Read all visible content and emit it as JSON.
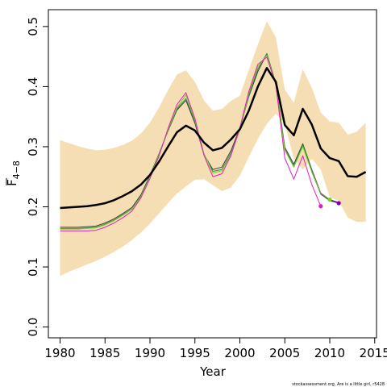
{
  "chart_data": {
    "type": "line",
    "xlabel": "Year",
    "ylabel": "F",
    "ylabel_sub": "4−8",
    "xlim": [
      1978.7,
      2015.2
    ],
    "ylim": [
      -0.018,
      0.528
    ],
    "xticks": [
      "1980",
      "1985",
      "1990",
      "1995",
      "2000",
      "2005",
      "2010",
      "2015"
    ],
    "yticks": [
      "0.0",
      "0.1",
      "0.2",
      "0.3",
      "0.4",
      "0.5"
    ],
    "band_color": "#F5DEB3",
    "band": {
      "x": [
        1980,
        1981,
        1982,
        1983,
        1984,
        1985,
        1986,
        1987,
        1988,
        1989,
        1990,
        1991,
        1992,
        1993,
        1994,
        1995,
        1996,
        1997,
        1998,
        1999,
        2000,
        2001,
        2002,
        2003,
        2004,
        2005,
        2006,
        2007,
        2008,
        2009,
        2010,
        2011,
        2012,
        2013,
        2014
      ],
      "lower": [
        0.085,
        0.092,
        0.098,
        0.104,
        0.11,
        0.117,
        0.125,
        0.134,
        0.145,
        0.157,
        0.172,
        0.189,
        0.206,
        0.222,
        0.234,
        0.245,
        0.246,
        0.236,
        0.226,
        0.232,
        0.252,
        0.283,
        0.313,
        0.338,
        0.355,
        0.338,
        0.28,
        0.262,
        0.28,
        0.262,
        0.216,
        0.21,
        0.182,
        0.175,
        0.175
      ],
      "upper": [
        0.311,
        0.306,
        0.301,
        0.297,
        0.294,
        0.295,
        0.298,
        0.303,
        0.31,
        0.322,
        0.34,
        0.365,
        0.394,
        0.42,
        0.427,
        0.408,
        0.377,
        0.36,
        0.363,
        0.376,
        0.385,
        0.428,
        0.47,
        0.509,
        0.482,
        0.395,
        0.373,
        0.429,
        0.398,
        0.357,
        0.342,
        0.34,
        0.32,
        0.325,
        0.34
      ]
    },
    "series": [
      {
        "color": "#000000",
        "width": 2.5,
        "x": [
          1980,
          1981,
          1982,
          1983,
          1984,
          1985,
          1986,
          1987,
          1988,
          1989,
          1990,
          1991,
          1992,
          1993,
          1994,
          1995,
          1996,
          1997,
          1998,
          1999,
          2000,
          2001,
          2002,
          2003,
          2004,
          2005,
          2006,
          2007,
          2008,
          2009,
          2010,
          2011,
          2012,
          2013,
          2014
        ],
        "y": [
          0.198,
          0.199,
          0.2,
          0.201,
          0.203,
          0.206,
          0.211,
          0.218,
          0.226,
          0.237,
          0.253,
          0.275,
          0.3,
          0.324,
          0.335,
          0.327,
          0.307,
          0.294,
          0.298,
          0.312,
          0.329,
          0.36,
          0.4,
          0.431,
          0.408,
          0.336,
          0.319,
          0.363,
          0.337,
          0.297,
          0.281,
          0.276,
          0.251,
          0.25,
          0.258
        ]
      },
      {
        "color": "#3D3D3D",
        "width": 1,
        "x": [
          1980,
          1981,
          1982,
          1983,
          1984,
          1985,
          1986,
          1987,
          1988,
          1989,
          1990,
          1991,
          1992,
          1993,
          1994,
          1995,
          1996,
          1997,
          1998,
          1999,
          2000,
          2001,
          2002,
          2003,
          2004,
          2005,
          2006,
          2007,
          2008,
          2009,
          2010,
          2011
        ],
        "y": [
          0.166,
          0.166,
          0.166,
          0.167,
          0.168,
          0.173,
          0.18,
          0.189,
          0.199,
          0.22,
          0.252,
          0.288,
          0.326,
          0.361,
          0.377,
          0.339,
          0.287,
          0.262,
          0.266,
          0.293,
          0.331,
          0.384,
          0.425,
          0.455,
          0.405,
          0.299,
          0.271,
          0.305,
          0.262,
          0.223,
          0.212,
          0.207
        ],
        "end_dot": false
      },
      {
        "color": "#2E8B57",
        "width": 1,
        "x": [
          1980,
          1981,
          1982,
          1983,
          1984,
          1985,
          1986,
          1987,
          1988,
          1989,
          1990,
          1991,
          1992,
          1993,
          1994,
          1995,
          1996,
          1997,
          1998,
          1999,
          2000,
          2001,
          2002,
          2003,
          2004,
          2005,
          2006,
          2007,
          2008,
          2009,
          2010,
          2011
        ],
        "y": [
          0.164,
          0.164,
          0.164,
          0.165,
          0.166,
          0.171,
          0.178,
          0.187,
          0.197,
          0.218,
          0.25,
          0.287,
          0.327,
          0.363,
          0.38,
          0.342,
          0.288,
          0.259,
          0.262,
          0.289,
          0.329,
          0.386,
          0.429,
          0.455,
          0.404,
          0.296,
          0.268,
          0.303,
          0.26,
          0.221,
          0.21,
          0.206
        ],
        "end_dot": false
      },
      {
        "color": "#7B00B0",
        "width": 1,
        "x": [
          2008,
          2009,
          2010,
          2011
        ],
        "y": [
          0.258,
          0.222,
          0.211,
          0.206
        ],
        "end_dot": true
      },
      {
        "color": "#7CCD1C",
        "width": 1,
        "x": [
          1980,
          1981,
          1982,
          1983,
          1984,
          1985,
          1986,
          1987,
          1988,
          1989,
          1990,
          1991,
          1992,
          1993,
          1994,
          1995,
          1996,
          1997,
          1998,
          1999,
          2000,
          2001,
          2002,
          2003,
          2004,
          2005,
          2006,
          2007,
          2008,
          2009,
          2010
        ],
        "y": [
          0.163,
          0.163,
          0.163,
          0.164,
          0.165,
          0.17,
          0.177,
          0.186,
          0.196,
          0.217,
          0.249,
          0.286,
          0.328,
          0.365,
          0.386,
          0.344,
          0.289,
          0.256,
          0.26,
          0.287,
          0.328,
          0.389,
          0.433,
          0.452,
          0.403,
          0.294,
          0.266,
          0.3,
          0.258,
          0.223,
          0.212
        ],
        "end_dot": true
      },
      {
        "color": "#E020C0",
        "width": 1,
        "x": [
          1980,
          1981,
          1982,
          1983,
          1984,
          1985,
          1986,
          1987,
          1988,
          1989,
          1990,
          1991,
          1992,
          1993,
          1994,
          1995,
          1996,
          1997,
          1998,
          1999,
          2000,
          2001,
          2002,
          2003,
          2004,
          2005,
          2006,
          2007,
          2008,
          2009
        ],
        "y": [
          0.16,
          0.16,
          0.16,
          0.16,
          0.161,
          0.166,
          0.173,
          0.182,
          0.193,
          0.215,
          0.247,
          0.284,
          0.33,
          0.37,
          0.39,
          0.347,
          0.286,
          0.25,
          0.255,
          0.285,
          0.331,
          0.392,
          0.437,
          0.449,
          0.403,
          0.281,
          0.246,
          0.285,
          0.237,
          0.201
        ],
        "end_dot": true
      }
    ],
    "footer": "stockassessment.org,  Are  is  a  little  girl,  r5428"
  }
}
